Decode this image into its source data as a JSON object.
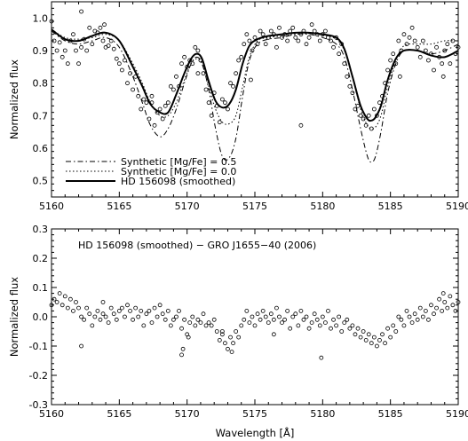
{
  "chart_data": [
    {
      "type": "line",
      "xlabel": "",
      "ylabel": "Normalized flux",
      "xlim": [
        5160,
        5190
      ],
      "ylim": [
        0.45,
        1.05
      ],
      "x_ticks": [
        "5160",
        "5165",
        "5170",
        "5175",
        "5180",
        "5185",
        "5190"
      ],
      "y_ticks": [
        "0.5",
        "0.6",
        "0.7",
        "0.8",
        "0.9",
        "1.0"
      ],
      "legend_position": "bottom-left",
      "series": [
        {
          "name": "Synthetic [Mg/Fe] = 0.5",
          "style": "dash-dot",
          "x": [
            5160,
            5161,
            5162,
            5163,
            5164,
            5165,
            5166,
            5166.7,
            5167.3,
            5168,
            5168.6,
            5169.2,
            5169.8,
            5170.3,
            5170.7,
            5171.1,
            5171.6,
            5172.1,
            5172.6,
            5173.1,
            5173.6,
            5174.1,
            5174.6,
            5175.2,
            5176,
            5177,
            5178,
            5179,
            5180,
            5181,
            5181.6,
            5182.2,
            5182.8,
            5183.3,
            5183.6,
            5183.9,
            5184.3,
            5184.8,
            5185.4,
            5186,
            5187,
            5188,
            5189,
            5190
          ],
          "y": [
            0.96,
            0.93,
            0.92,
            0.93,
            0.94,
            0.91,
            0.82,
            0.74,
            0.67,
            0.635,
            0.66,
            0.72,
            0.8,
            0.86,
            0.88,
            0.86,
            0.78,
            0.66,
            0.575,
            0.57,
            0.63,
            0.76,
            0.87,
            0.92,
            0.935,
            0.94,
            0.95,
            0.95,
            0.94,
            0.92,
            0.88,
            0.78,
            0.66,
            0.575,
            0.557,
            0.575,
            0.65,
            0.77,
            0.86,
            0.9,
            0.9,
            0.89,
            0.9,
            0.92
          ]
        },
        {
          "name": "Synthetic [Mg/Fe] = 0.0",
          "style": "dotted",
          "x": [
            5160,
            5161,
            5162,
            5163,
            5164,
            5165,
            5166,
            5166.7,
            5167.3,
            5168,
            5168.6,
            5169.2,
            5169.8,
            5170.3,
            5170.7,
            5171.1,
            5171.6,
            5172.1,
            5172.6,
            5173.1,
            5173.6,
            5174.1,
            5174.6,
            5175.2,
            5176,
            5177,
            5178,
            5179,
            5180,
            5181,
            5181.6,
            5182.2,
            5182.8,
            5183.3,
            5183.6,
            5183.9,
            5184.3,
            5184.8,
            5185.4,
            5186,
            5187,
            5188,
            5189,
            5190
          ],
          "y": [
            0.965,
            0.94,
            0.935,
            0.94,
            0.95,
            0.93,
            0.86,
            0.8,
            0.74,
            0.7,
            0.7,
            0.74,
            0.81,
            0.86,
            0.875,
            0.86,
            0.79,
            0.72,
            0.68,
            0.675,
            0.7,
            0.79,
            0.88,
            0.93,
            0.94,
            0.945,
            0.95,
            0.952,
            0.948,
            0.935,
            0.9,
            0.82,
            0.72,
            0.67,
            0.66,
            0.665,
            0.7,
            0.79,
            0.87,
            0.915,
            0.92,
            0.92,
            0.93,
            0.93
          ]
        },
        {
          "name": "HD 156098 (smoothed)",
          "style": "solid-thick",
          "x": [
            5160,
            5161,
            5162,
            5163,
            5164,
            5165,
            5166,
            5166.7,
            5167.3,
            5168,
            5168.6,
            5169.2,
            5169.8,
            5170.3,
            5170.7,
            5171.1,
            5171.6,
            5172.1,
            5172.6,
            5173.1,
            5173.6,
            5174.1,
            5174.6,
            5175.2,
            5176,
            5177,
            5178,
            5179,
            5180,
            5181,
            5181.6,
            5182.2,
            5182.8,
            5183.3,
            5183.6,
            5183.9,
            5184.3,
            5184.8,
            5185.4,
            5186,
            5187,
            5188,
            5189,
            5190
          ],
          "y": [
            0.965,
            0.935,
            0.93,
            0.945,
            0.955,
            0.93,
            0.85,
            0.79,
            0.735,
            0.71,
            0.71,
            0.765,
            0.83,
            0.875,
            0.89,
            0.875,
            0.805,
            0.745,
            0.725,
            0.735,
            0.78,
            0.86,
            0.915,
            0.935,
            0.945,
            0.95,
            0.955,
            0.955,
            0.95,
            0.94,
            0.905,
            0.82,
            0.73,
            0.69,
            0.685,
            0.695,
            0.73,
            0.81,
            0.875,
            0.9,
            0.9,
            0.885,
            0.88,
            0.9
          ]
        },
        {
          "name": "",
          "style": "open-circles",
          "x": [
            5160.0,
            5160.2,
            5160.4,
            5160.6,
            5160.8,
            5161.0,
            5161.2,
            5161.4,
            5161.6,
            5161.8,
            5162.0,
            5162.2,
            5162.4,
            5162.6,
            5162.8,
            5163.0,
            5163.2,
            5163.4,
            5163.6,
            5163.8,
            5164.0,
            5164.2,
            5164.4,
            5164.6,
            5164.8,
            5165.0,
            5165.2,
            5165.4,
            5165.6,
            5165.8,
            5166.0,
            5166.2,
            5166.4,
            5166.6,
            5166.8,
            5167.0,
            5167.2,
            5167.4,
            5167.6,
            5167.8,
            5168.0,
            5168.2,
            5168.4,
            5168.6,
            5168.8,
            5169.0,
            5169.2,
            5169.4,
            5169.6,
            5169.8,
            5170.0,
            5170.2,
            5170.4,
            5170.6,
            5170.8,
            5171.0,
            5171.2,
            5171.4,
            5171.6,
            5171.8,
            5172.0,
            5172.2,
            5172.4,
            5172.6,
            5172.8,
            5173.0,
            5173.2,
            5173.4,
            5173.6,
            5173.8,
            5174.0,
            5174.2,
            5174.4,
            5174.6,
            5174.8,
            5175.0,
            5175.2,
            5175.4,
            5175.6,
            5175.8,
            5176.0,
            5176.2,
            5176.4,
            5176.6,
            5176.8,
            5177.0,
            5177.2,
            5177.4,
            5177.6,
            5177.8,
            5178.0,
            5178.2,
            5178.4,
            5178.6,
            5178.8,
            5179.0,
            5179.2,
            5179.4,
            5179.6,
            5179.8,
            5180.0,
            5180.2,
            5180.4,
            5180.6,
            5180.8,
            5181.0,
            5181.2,
            5181.4,
            5181.6,
            5181.8,
            5182.0,
            5182.2,
            5182.4,
            5182.6,
            5182.8,
            5183.0,
            5183.2,
            5183.4,
            5183.6,
            5183.8,
            5184.0,
            5184.2,
            5184.4,
            5184.6,
            5184.8,
            5185.0,
            5185.2,
            5185.4,
            5185.6,
            5185.8,
            5186.0,
            5186.2,
            5186.4,
            5186.6,
            5186.8,
            5187.0,
            5187.2,
            5187.4,
            5187.6,
            5187.8,
            5188.0,
            5188.2,
            5188.4,
            5188.6,
            5188.8,
            5189.0,
            5189.2,
            5189.4,
            5189.6,
            5189.8,
            5190.0,
            5162.2,
            5163.9,
            5167.4,
            5170.8,
            5174.7,
            5178.4,
            5185.7,
            5188.9
          ],
          "y": [
            0.99,
            0.93,
            0.9,
            0.925,
            0.88,
            0.9,
            0.86,
            0.93,
            0.95,
            0.9,
            0.86,
            0.91,
            0.935,
            0.9,
            0.97,
            0.92,
            0.96,
            0.955,
            0.97,
            0.93,
            0.91,
            0.915,
            0.93,
            0.905,
            0.875,
            0.86,
            0.84,
            0.87,
            0.8,
            0.83,
            0.78,
            0.82,
            0.76,
            0.72,
            0.75,
            0.74,
            0.69,
            0.74,
            0.67,
            0.71,
            0.72,
            0.69,
            0.73,
            0.74,
            0.79,
            0.78,
            0.82,
            0.79,
            0.86,
            0.88,
            0.85,
            0.87,
            0.86,
            0.91,
            0.9,
            0.87,
            0.83,
            0.78,
            0.74,
            0.7,
            0.77,
            0.73,
            0.68,
            0.75,
            0.74,
            0.72,
            0.8,
            0.79,
            0.83,
            0.87,
            0.88,
            0.92,
            0.95,
            0.93,
            0.9,
            0.94,
            0.92,
            0.96,
            0.95,
            0.92,
            0.94,
            0.96,
            0.95,
            0.91,
            0.97,
            0.94,
            0.95,
            0.93,
            0.96,
            0.97,
            0.94,
            0.93,
            0.95,
            0.96,
            0.92,
            0.94,
            0.98,
            0.96,
            0.95,
            0.93,
            0.95,
            0.96,
            0.94,
            0.93,
            0.91,
            0.94,
            0.89,
            0.92,
            0.86,
            0.82,
            0.79,
            0.77,
            0.72,
            0.73,
            0.7,
            0.69,
            0.67,
            0.7,
            0.66,
            0.72,
            0.7,
            0.74,
            0.76,
            0.8,
            0.84,
            0.87,
            0.89,
            0.86,
            0.93,
            0.9,
            0.95,
            0.92,
            0.94,
            0.97,
            0.93,
            0.91,
            0.88,
            0.93,
            0.9,
            0.87,
            0.89,
            0.84,
            0.91,
            0.88,
            0.86,
            0.9,
            0.92,
            0.86,
            0.93,
            0.89,
            0.91,
            1.02,
            0.98,
            0.76,
            0.83,
            0.81,
            0.67,
            0.82,
            0.82
          ]
        }
      ]
    },
    {
      "type": "scatter",
      "title": "HD 156098 (smoothed) − GRO J1655−40 (2006)",
      "xlabel": "Wavelength [Å]",
      "ylabel": "Normalized flux",
      "xlim": [
        5160,
        5190
      ],
      "ylim": [
        -0.3,
        0.3
      ],
      "x_ticks": [
        "5160",
        "5165",
        "5170",
        "5175",
        "5180",
        "5185",
        "5190"
      ],
      "y_ticks": [
        "-0.3",
        "-0.2",
        "-0.1",
        "0.0",
        "0.1",
        "0.2",
        "0.3"
      ],
      "series": [
        {
          "name": "",
          "style": "open-circles",
          "x": [
            5160.0,
            5160.2,
            5160.4,
            5160.6,
            5160.8,
            5161.0,
            5161.2,
            5161.4,
            5161.6,
            5161.8,
            5162.0,
            5162.2,
            5162.4,
            5162.6,
            5162.8,
            5163.0,
            5163.2,
            5163.4,
            5163.6,
            5163.8,
            5164.0,
            5164.2,
            5164.4,
            5164.6,
            5164.8,
            5165.0,
            5165.2,
            5165.4,
            5165.6,
            5165.8,
            5166.0,
            5166.2,
            5166.4,
            5166.6,
            5166.8,
            5167.0,
            5167.2,
            5167.4,
            5167.6,
            5167.8,
            5168.0,
            5168.2,
            5168.4,
            5168.6,
            5168.8,
            5169.0,
            5169.2,
            5169.4,
            5169.6,
            5169.8,
            5170.0,
            5170.2,
            5170.4,
            5170.6,
            5170.8,
            5171.0,
            5171.2,
            5171.4,
            5171.6,
            5171.8,
            5172.0,
            5172.2,
            5172.4,
            5172.6,
            5172.8,
            5173.0,
            5173.2,
            5173.4,
            5173.6,
            5173.8,
            5174.0,
            5174.2,
            5174.4,
            5174.6,
            5174.8,
            5175.0,
            5175.2,
            5175.4,
            5175.6,
            5175.8,
            5176.0,
            5176.2,
            5176.4,
            5176.6,
            5176.8,
            5177.0,
            5177.2,
            5177.4,
            5177.6,
            5177.8,
            5178.0,
            5178.2,
            5178.4,
            5178.6,
            5178.8,
            5179.0,
            5179.2,
            5179.4,
            5179.6,
            5179.8,
            5180.0,
            5180.2,
            5180.4,
            5180.6,
            5180.8,
            5181.0,
            5181.2,
            5181.4,
            5181.6,
            5181.8,
            5182.0,
            5182.2,
            5182.4,
            5182.6,
            5182.8,
            5183.0,
            5183.2,
            5183.4,
            5183.6,
            5183.8,
            5184.0,
            5184.2,
            5184.4,
            5184.6,
            5184.8,
            5185.0,
            5185.2,
            5185.4,
            5185.6,
            5185.8,
            5186.0,
            5186.2,
            5186.4,
            5186.6,
            5186.8,
            5187.0,
            5187.2,
            5187.4,
            5187.6,
            5187.8,
            5188.0,
            5188.2,
            5188.4,
            5188.6,
            5188.8,
            5189.0,
            5189.2,
            5189.4,
            5189.6,
            5189.8,
            5190.0,
            5162.2,
            5169.6,
            5169.7,
            5170.1,
            5172.6,
            5173.3,
            5176.4,
            5179.9,
            5188.9,
            5163.8
          ],
          "y": [
            0.04,
            0.06,
            0.05,
            0.08,
            0.04,
            0.07,
            0.03,
            0.06,
            0.02,
            0.05,
            0.03,
            0.0,
            -0.01,
            0.03,
            0.01,
            -0.03,
            0.0,
            0.02,
            -0.01,
            0.01,
            0.0,
            -0.02,
            0.03,
            0.01,
            -0.01,
            0.02,
            0.03,
            0.0,
            0.04,
            0.02,
            -0.01,
            0.03,
            0.0,
            0.02,
            -0.03,
            0.01,
            0.02,
            -0.02,
            0.03,
            0.0,
            0.04,
            0.01,
            -0.01,
            0.02,
            -0.03,
            -0.01,
            0.0,
            0.02,
            -0.04,
            -0.01,
            -0.06,
            -0.02,
            0.0,
            -0.03,
            -0.01,
            -0.02,
            0.01,
            -0.03,
            -0.02,
            -0.03,
            -0.01,
            -0.05,
            -0.08,
            -0.06,
            -0.09,
            -0.11,
            -0.07,
            -0.09,
            -0.05,
            -0.07,
            -0.03,
            -0.01,
            0.02,
            -0.02,
            0.0,
            -0.03,
            0.01,
            -0.01,
            0.02,
            0.0,
            -0.02,
            0.01,
            -0.01,
            0.03,
            0.0,
            -0.02,
            -0.01,
            0.02,
            -0.04,
            0.0,
            0.01,
            -0.03,
            0.02,
            -0.01,
            0.0,
            -0.04,
            -0.02,
            0.01,
            -0.01,
            -0.03,
            0.0,
            -0.02,
            0.02,
            -0.04,
            -0.01,
            -0.03,
            0.0,
            -0.05,
            -0.02,
            -0.01,
            -0.04,
            -0.03,
            -0.06,
            -0.04,
            -0.07,
            -0.05,
            -0.08,
            -0.06,
            -0.09,
            -0.07,
            -0.1,
            -0.08,
            -0.06,
            -0.09,
            -0.04,
            -0.07,
            -0.03,
            -0.05,
            0.0,
            -0.01,
            -0.03,
            0.02,
            0.0,
            -0.02,
            0.01,
            -0.01,
            0.03,
            0.0,
            0.02,
            -0.01,
            0.04,
            0.01,
            0.03,
            0.06,
            0.02,
            0.05,
            0.03,
            0.07,
            0.04,
            0.02,
            0.05,
            -0.1,
            -0.13,
            -0.11,
            -0.07,
            -0.05,
            -0.12,
            -0.06,
            -0.14,
            0.08,
            0.05
          ]
        }
      ]
    }
  ],
  "legend": {
    "items": [
      {
        "label": "Synthetic [Mg/Fe] = 0.5"
      },
      {
        "label": "Synthetic [Mg/Fe] = 0.0"
      },
      {
        "label": "HD 156098 (smoothed)"
      }
    ]
  },
  "panels": {
    "top_ylabel": "Normalized flux",
    "bottom_ylabel": "Normalized flux",
    "bottom_annotation": "HD 156098 (smoothed) − GRO J1655−40 (2006)",
    "xlabel": "Wavelength [Å]"
  }
}
